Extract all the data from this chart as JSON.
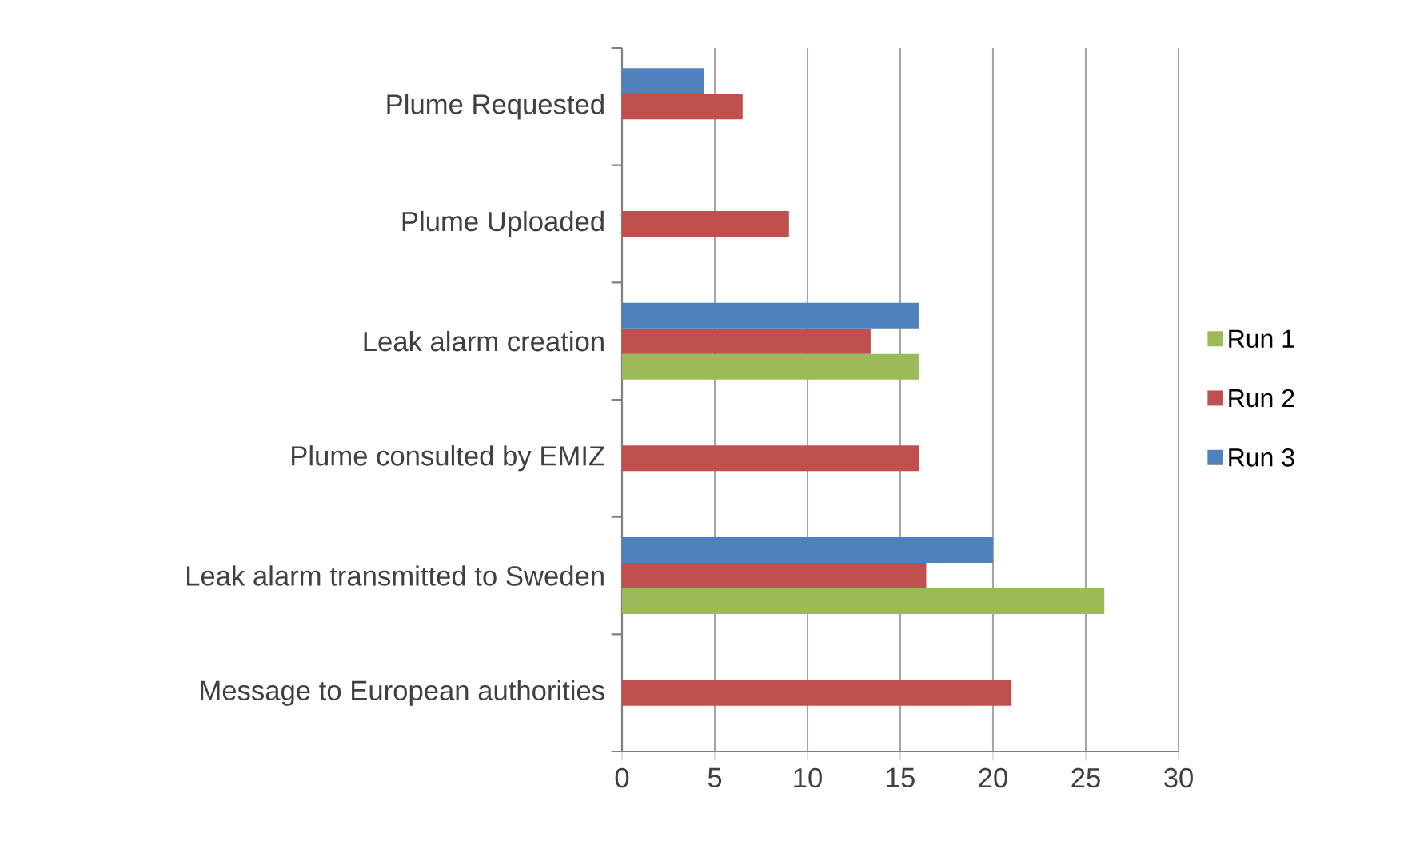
{
  "chart_data": {
    "type": "bar",
    "orientation": "horizontal",
    "categories": [
      "Plume Requested",
      "Plume Uploaded",
      "Leak alarm creation",
      "Plume consulted by EMIZ",
      "Leak alarm transmitted to Sweden",
      "Message to European authorities"
    ],
    "series": [
      {
        "name": "Run 1",
        "color": "#9bbb59",
        "values": [
          null,
          null,
          16,
          null,
          26,
          null
        ]
      },
      {
        "name": "Run 2",
        "color": "#c0504d",
        "values": [
          6.5,
          9,
          13.4,
          16,
          16.4,
          21
        ]
      },
      {
        "name": "Run 3",
        "color": "#4f81bd",
        "values": [
          4.4,
          null,
          16,
          null,
          20,
          null
        ]
      }
    ],
    "xlim": [
      0,
      30
    ],
    "xticks": [
      0,
      5,
      10,
      15,
      20,
      25,
      30
    ],
    "grid": "x",
    "legend": "right"
  }
}
